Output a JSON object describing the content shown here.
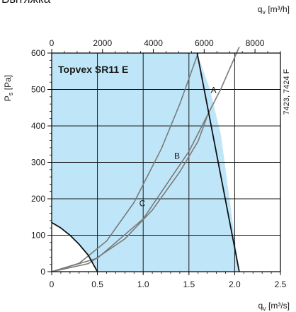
{
  "page": {
    "header_text": "Вытяжка"
  },
  "chart_data": {
    "type": "line",
    "title": "Topvex SR11 E",
    "code_label": "7423, 7424 F",
    "xlabel": "q",
    "xlabel_sub": "v",
    "xlabel_unit": " [m³/s]",
    "x2label": "q",
    "x2label_sub": "v",
    "x2label_unit": " [m³/h]",
    "ylabel": "P",
    "ylabel_sub": "s",
    "ylabel_unit": " [Pa]",
    "xlim": [
      0,
      2.5
    ],
    "ylim": [
      0,
      600
    ],
    "x_ticks": [
      0,
      0.5,
      1,
      1.5,
      2,
      2.5
    ],
    "x_tick_labels": [
      "0",
      "0.5",
      "1.0",
      "1.5",
      "2.0",
      "2.5"
    ],
    "x2_ticks": [
      0,
      2000,
      4000,
      6000,
      8000
    ],
    "x2_tick_labels": [
      "0",
      "2000",
      "4000",
      "6000",
      "8000"
    ],
    "y_ticks": [
      0,
      100,
      200,
      300,
      400,
      500,
      600
    ],
    "y_tick_labels": [
      "0",
      "100",
      "200",
      "300",
      "400",
      "500",
      "600"
    ],
    "grid": true,
    "operating_area_color": "#bfe6f8",
    "operating_area": {
      "x": [
        0.5,
        0.47,
        0.4,
        0.3,
        0.2,
        0.1,
        0.0,
        0.0,
        1.59,
        1.73,
        1.85,
        2.05
      ],
      "y": [
        0,
        20,
        45,
        75,
        100,
        120,
        135,
        600,
        600,
        500,
        375,
        0
      ]
    },
    "curves": [
      {
        "label": "A",
        "x": [
          0,
          0.3,
          0.6,
          0.9,
          1.2,
          1.4,
          1.6
        ],
        "y": [
          0,
          23,
          84,
          190,
          338,
          460,
          600
        ]
      },
      {
        "label": "B",
        "x": [
          0,
          0.4,
          0.8,
          1.1,
          1.4,
          1.6,
          1.72
        ],
        "y": [
          0,
          22,
          90,
          169,
          274,
          358,
          440
        ]
      },
      {
        "label": "C",
        "x": [
          0,
          0.5,
          1.0,
          1.5,
          1.85,
          2.05
        ],
        "y": [
          0,
          37,
          145,
          330,
          502,
          617
        ]
      }
    ],
    "curve_label_positions": [
      {
        "label": "A",
        "x": 1.77,
        "y": 490
      },
      {
        "label": "B",
        "x": 1.37,
        "y": 310
      },
      {
        "label": "C",
        "x": 0.99,
        "y": 180
      }
    ],
    "fan_curve": {
      "x": [
        0.5,
        0.4,
        0.3,
        0.2,
        0.1,
        0.0
      ],
      "y": [
        0,
        45,
        75,
        100,
        120,
        135
      ]
    },
    "right_boundary": {
      "x": [
        1.59,
        2.05
      ],
      "y": [
        600,
        0
      ]
    }
  }
}
